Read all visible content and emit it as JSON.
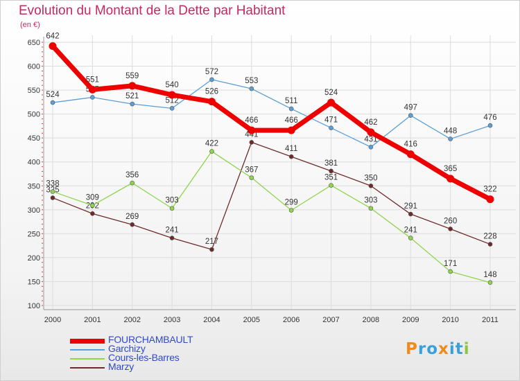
{
  "chart_data": {
    "type": "line",
    "title": "Evolution du Montant de la Dette par Habitant",
    "subtitle": "(en €)",
    "x": [
      "2000",
      "2001",
      "2002",
      "2003",
      "2004",
      "2005",
      "2006",
      "2007",
      "2008",
      "2009",
      "2010",
      "2011"
    ],
    "ylim": [
      100,
      650
    ],
    "yticks": [
      100,
      150,
      200,
      250,
      300,
      350,
      400,
      450,
      500,
      550,
      600,
      650
    ],
    "grid": true,
    "legend_position": "bottom-left",
    "series": [
      {
        "name": "FOURCHAMBAULT",
        "color": "#ee0000",
        "values": [
          642,
          551,
          559,
          540,
          526,
          466,
          466,
          524,
          462,
          416,
          365,
          322
        ]
      },
      {
        "name": "Garchizy",
        "color": "#5b9fd6",
        "values": [
          524,
          535,
          521,
          512,
          572,
          553,
          511,
          471,
          431,
          497,
          448,
          476
        ]
      },
      {
        "name": "Cours-les-Barres",
        "color": "#8fd44c",
        "values": [
          338,
          309,
          356,
          303,
          422,
          367,
          299,
          351,
          303,
          241,
          171,
          148
        ]
      },
      {
        "name": "Marzy",
        "color": "#6e2a2a",
        "values": [
          325,
          292,
          269,
          241,
          217,
          441,
          411,
          381,
          350,
          291,
          260,
          228
        ]
      }
    ]
  },
  "logo": {
    "text": "Proxiti",
    "letters": [
      {
        "ch": "P",
        "color": "#f08a1c"
      },
      {
        "ch": "r",
        "color": "#3aa0dc"
      },
      {
        "ch": "o",
        "color": "#3aa0dc"
      },
      {
        "ch": "x",
        "color": "#f08a1c"
      },
      {
        "ch": "i",
        "color": "#3aa0dc"
      },
      {
        "ch": "t",
        "color": "#3aa0dc"
      },
      {
        "ch": "i",
        "color": "#8cc63f"
      }
    ]
  }
}
